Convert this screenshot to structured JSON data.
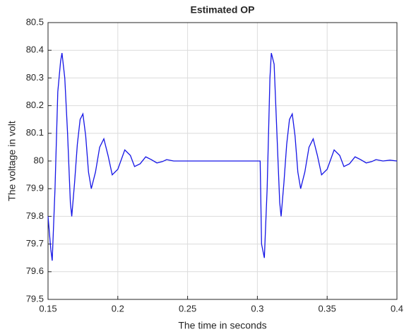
{
  "chart_data": {
    "type": "line",
    "title": "Estimated OP",
    "xlabel": "The time in seconds",
    "ylabel": "The voltage in volt",
    "x": [
      0.15,
      0.152,
      0.153,
      0.155,
      0.157,
      0.159,
      0.16,
      0.162,
      0.164,
      0.166,
      0.167,
      0.169,
      0.171,
      0.173,
      0.175,
      0.177,
      0.179,
      0.181,
      0.184,
      0.187,
      0.19,
      0.193,
      0.196,
      0.2,
      0.205,
      0.209,
      0.212,
      0.216,
      0.22,
      0.224,
      0.228,
      0.232,
      0.235,
      0.24,
      0.25,
      0.27,
      0.29,
      0.302,
      0.303,
      0.305,
      0.307,
      0.309,
      0.31,
      0.312,
      0.314,
      0.316,
      0.317,
      0.319,
      0.321,
      0.323,
      0.325,
      0.327,
      0.329,
      0.331,
      0.334,
      0.337,
      0.34,
      0.343,
      0.346,
      0.35,
      0.355,
      0.359,
      0.362,
      0.366,
      0.37,
      0.374,
      0.378,
      0.382,
      0.385,
      0.39,
      0.395,
      0.4
    ],
    "series": [
      {
        "name": "Estimated OP",
        "color": "#1515e6",
        "values": [
          79.8,
          79.68,
          79.64,
          79.9,
          80.25,
          80.36,
          80.39,
          80.3,
          80.1,
          79.85,
          79.8,
          79.92,
          80.06,
          80.15,
          80.17,
          80.09,
          79.96,
          79.9,
          79.96,
          80.05,
          80.08,
          80.02,
          79.95,
          79.97,
          80.04,
          80.02,
          79.98,
          79.99,
          80.015,
          80.005,
          79.993,
          79.998,
          80.005,
          80.0,
          80.0,
          80.0,
          80.0,
          80.0,
          79.7,
          79.65,
          79.9,
          80.3,
          80.39,
          80.35,
          80.1,
          79.85,
          79.8,
          79.92,
          80.06,
          80.15,
          80.17,
          80.09,
          79.96,
          79.9,
          79.96,
          80.05,
          80.08,
          80.02,
          79.95,
          79.97,
          80.04,
          80.02,
          79.98,
          79.99,
          80.015,
          80.005,
          79.993,
          79.998,
          80.005,
          80.0,
          80.003,
          80.0
        ]
      }
    ],
    "xlim": [
      0.15,
      0.4
    ],
    "xticks": [
      0.15,
      0.2,
      0.25,
      0.3,
      0.35,
      0.4
    ],
    "ylim": [
      79.5,
      80.5
    ],
    "yticks": [
      79.5,
      79.6,
      79.7,
      79.8,
      79.9,
      80,
      80.1,
      80.2,
      80.3,
      80.4,
      80.5
    ],
    "grid": true
  }
}
